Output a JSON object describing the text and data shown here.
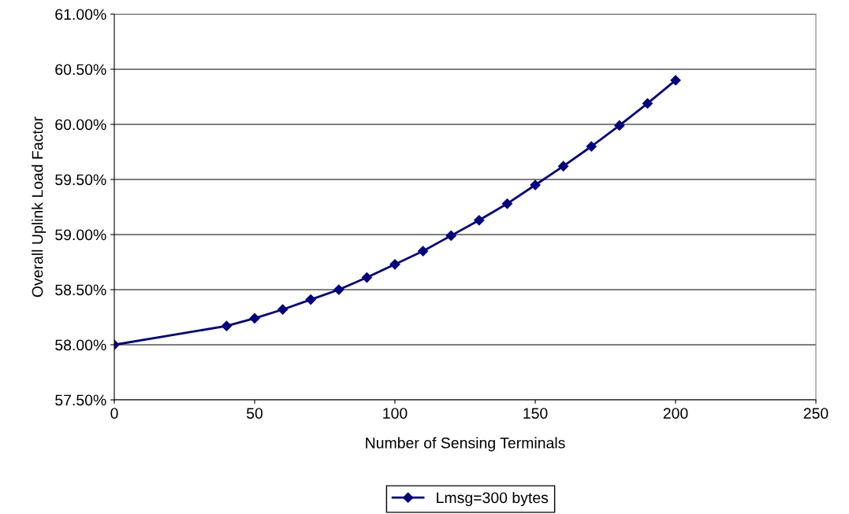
{
  "chart_data": {
    "type": "line",
    "xlabel": "Number of Sensing Terminals",
    "ylabel": "Overall Uplink Load Factor",
    "x": [
      0,
      40,
      50,
      60,
      70,
      80,
      90,
      100,
      110,
      120,
      130,
      140,
      150,
      160,
      170,
      180,
      190,
      200
    ],
    "series": [
      {
        "name": "Lmsg=300 bytes",
        "color": "#000080",
        "values": [
          58.0,
          58.17,
          58.24,
          58.32,
          58.41,
          58.5,
          58.61,
          58.73,
          58.85,
          58.99,
          59.13,
          59.28,
          59.45,
          59.62,
          59.8,
          59.99,
          60.19,
          60.4
        ]
      }
    ],
    "xlim": [
      0,
      250
    ],
    "xticks": [
      0,
      50,
      100,
      150,
      200,
      250
    ],
    "ylim": [
      57.5,
      61.0
    ],
    "yticks": [
      {
        "value": 57.5,
        "label": "57.50%"
      },
      {
        "value": 58.0,
        "label": "58.00%"
      },
      {
        "value": 58.5,
        "label": "58.50%"
      },
      {
        "value": 59.0,
        "label": "59.00%"
      },
      {
        "value": 59.5,
        "label": "59.50%"
      },
      {
        "value": 60.0,
        "label": "60.00%"
      },
      {
        "value": 60.5,
        "label": "60.50%"
      },
      {
        "value": 61.0,
        "label": "61.00%"
      }
    ],
    "grid": "y",
    "legend": "bottom",
    "marker": "diamond",
    "line_style": "solid"
  }
}
